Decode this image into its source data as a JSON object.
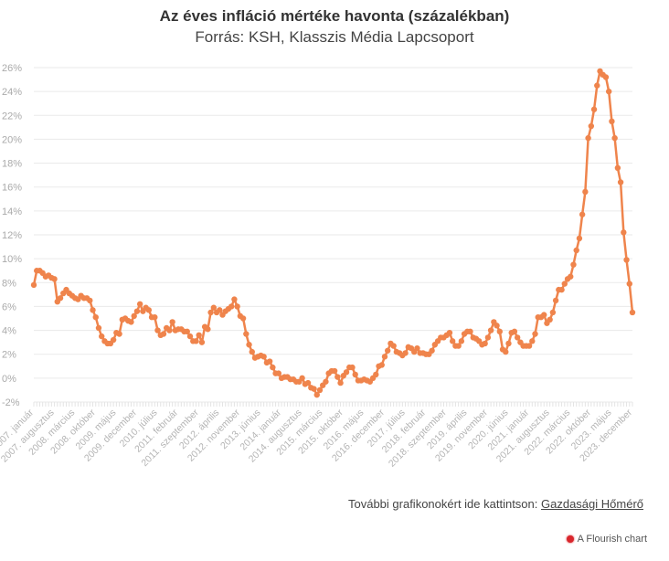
{
  "chart_data": {
    "type": "line",
    "title": "Az éves infláció mértéke havonta (százalékban)",
    "subtitle": "Forrás: KSH, Klasszis Média Lapcsoport",
    "frequency": "monthly",
    "tick_labels": [
      "2007. január",
      "2007. augusztus",
      "2008. március",
      "2008. október",
      "2009. május",
      "2009. december",
      "2010. július",
      "2011. február",
      "2011. szeptember",
      "2012. április",
      "2012. november",
      "2013. június",
      "2014. január",
      "2014. augusztus",
      "2015. március",
      "2015. október",
      "2016. május",
      "2016. december",
      "2017. július",
      "2018. február",
      "2018. szeptember",
      "2019. április",
      "2019. november",
      "2020. június",
      "2021. január",
      "2021. augusztus",
      "2022. március",
      "2022. október",
      "2023. május",
      "2023. december"
    ],
    "y_ticks": [
      "-2%",
      "0%",
      "2%",
      "4%",
      "6%",
      "8%",
      "10%",
      "12%",
      "14%",
      "16%",
      "18%",
      "20%",
      "22%",
      "24%",
      "26%"
    ],
    "ylim": [
      -2,
      26
    ],
    "grid": true,
    "line_color": "#ef844c",
    "values": [
      7.8,
      9.0,
      9.0,
      8.8,
      8.5,
      8.6,
      8.4,
      8.3,
      6.4,
      6.7,
      7.1,
      7.4,
      7.1,
      6.9,
      6.7,
      6.6,
      6.9,
      6.7,
      6.7,
      6.5,
      5.7,
      5.1,
      4.2,
      3.5,
      3.1,
      2.9,
      2.9,
      3.2,
      3.8,
      3.7,
      4.9,
      5.0,
      4.8,
      4.7,
      5.2,
      5.6,
      6.2,
      5.6,
      5.9,
      5.7,
      5.1,
      5.1,
      4.0,
      3.6,
      3.7,
      4.2,
      4.0,
      4.7,
      4.0,
      4.1,
      4.1,
      3.9,
      3.9,
      3.5,
      3.1,
      3.1,
      3.6,
      3.0,
      4.3,
      4.1,
      5.5,
      5.9,
      5.5,
      5.7,
      5.3,
      5.6,
      5.8,
      6.0,
      6.6,
      6.0,
      5.2,
      5.0,
      3.7,
      2.8,
      2.2,
      1.7,
      1.8,
      1.9,
      1.8,
      1.3,
      1.4,
      0.9,
      0.4,
      0.4,
      0.0,
      0.1,
      0.1,
      -0.1,
      -0.1,
      -0.3,
      -0.3,
      0.0,
      -0.5,
      -0.4,
      -0.8,
      -0.9,
      -1.4,
      -1.0,
      -0.6,
      -0.3,
      0.4,
      0.6,
      0.6,
      0.1,
      -0.4,
      0.2,
      0.5,
      0.9,
      0.9,
      0.3,
      -0.2,
      -0.2,
      -0.1,
      -0.2,
      -0.3,
      0.0,
      0.3,
      1.0,
      1.1,
      1.8,
      2.3,
      2.9,
      2.7,
      2.2,
      2.1,
      1.9,
      2.1,
      2.6,
      2.5,
      2.2,
      2.5,
      2.1,
      2.1,
      2.0,
      2.0,
      2.3,
      2.8,
      3.1,
      3.4,
      3.4,
      3.6,
      3.8,
      3.1,
      2.7,
      2.7,
      3.1,
      3.7,
      3.9,
      3.9,
      3.4,
      3.3,
      3.1,
      2.8,
      2.9,
      3.4,
      4.0,
      4.7,
      4.4,
      3.9,
      2.4,
      2.2,
      2.9,
      3.8,
      3.9,
      3.4,
      3.0,
      2.7,
      2.7,
      2.7,
      3.1,
      3.7,
      5.1,
      5.1,
      5.3,
      4.6,
      4.9,
      5.5,
      6.5,
      7.4,
      7.4,
      7.9,
      8.3,
      8.5,
      9.5,
      10.7,
      11.7,
      13.7,
      15.6,
      20.1,
      21.1,
      22.5,
      24.5,
      25.7,
      25.4,
      25.2,
      24.0,
      21.5,
      20.1,
      17.6,
      16.4,
      12.2,
      9.9,
      7.9,
      5.5
    ]
  },
  "footer": {
    "text": "További grafikonokért ide kattintson: ",
    "link": "Gazdasági Hőmérő"
  },
  "credit": "A Flourish chart"
}
